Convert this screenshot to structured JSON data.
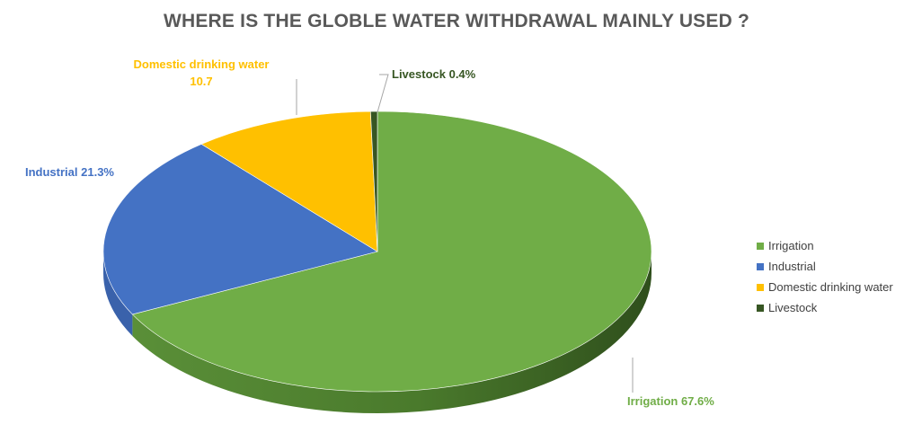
{
  "chart_data": {
    "type": "pie",
    "title": "WHERE IS THE GLOBLE WATER WITHDRAWAL MAINLY USED ?",
    "categories": [
      "Irrigation",
      "Industrial",
      "Domestic drinking water",
      "Livestock"
    ],
    "values": [
      67.6,
      21.3,
      10.7,
      0.4
    ],
    "data_labels": [
      {
        "name": "Irrigation",
        "value": "67.6%"
      },
      {
        "name": "Industrial",
        "value": "21.3%"
      },
      {
        "name": "Domestic drinking water",
        "value": "10.7"
      },
      {
        "name": "Livestock",
        "value": "0.4%"
      }
    ],
    "colors": [
      "#70AD47",
      "#4472C4",
      "#FFC000",
      "#375623"
    ],
    "label_colors": [
      "#70AD47",
      "#4472C4",
      "#FFC000",
      "#375623"
    ],
    "legend_position": "right",
    "style": "3d"
  },
  "legend": {
    "items": [
      "Irrigation",
      "Industrial",
      "Domestic drinking water",
      "Livestock"
    ]
  }
}
